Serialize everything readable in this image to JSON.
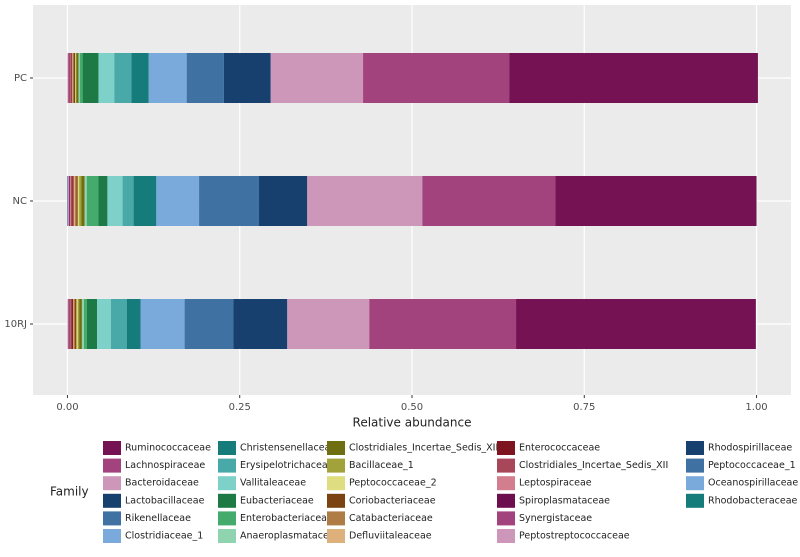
{
  "chart_data": {
    "type": "stacked_barh",
    "categories": [
      "PC",
      "NC",
      "10RJ"
    ],
    "xlabel": "Relative abundance",
    "legend_title": "Family",
    "xlim": [
      -0.05,
      1.05
    ],
    "xticks": [
      {
        "value": 0,
        "label": "0.00"
      },
      {
        "value": 0.25,
        "label": "0.25"
      },
      {
        "value": 0.5,
        "label": "0.50"
      },
      {
        "value": 0.75,
        "label": "0.75"
      },
      {
        "value": 1,
        "label": "1.00"
      }
    ],
    "grid": true,
    "series": [
      {
        "name": "Ruminococcaceae",
        "color": "#741253",
        "values": [
          0.361,
          0.292,
          0.348
        ]
      },
      {
        "name": "Lachnospiraceae",
        "color": "#a3437e",
        "values": [
          0.212,
          0.193,
          0.213
        ]
      },
      {
        "name": "Bacteroidaceae",
        "color": "#cd97b9",
        "values": [
          0.134,
          0.167,
          0.119
        ]
      },
      {
        "name": "Lactobacillaceae",
        "color": "#17406e",
        "values": [
          0.068,
          0.07,
          0.078
        ]
      },
      {
        "name": "Rikenellaceae",
        "color": "#3f71a3",
        "values": [
          0.054,
          0.087,
          0.071
        ]
      },
      {
        "name": "Clostridiaceae_1",
        "color": "#7aa9dc",
        "values": [
          0.055,
          0.062,
          0.064
        ]
      },
      {
        "name": "Christensenellaceae",
        "color": "#157b7b",
        "values": [
          0.025,
          0.033,
          0.02
        ]
      },
      {
        "name": "Erysipelotrichaceae",
        "color": "#49a9a8",
        "values": [
          0.025,
          0.016,
          0.023
        ]
      },
      {
        "name": "Vallitaleaceae",
        "color": "#7dd1c8",
        "values": [
          0.023,
          0.022,
          0.02
        ]
      },
      {
        "name": "Eubacteriaceae",
        "color": "#1d7a45",
        "values": [
          0.023,
          0.013,
          0.015
        ]
      },
      {
        "name": "Enterobacteriaceae",
        "color": "#44ab6d",
        "values": [
          0.004,
          0.017,
          0.004
        ]
      },
      {
        "name": "Anaeroplasmataceae",
        "color": "#8fd4ae",
        "values": [
          0.002,
          0.003,
          0.003
        ]
      },
      {
        "name": "Clostridiales_Incertae_Sedis_XIII",
        "color": "#6f6f12",
        "values": [
          0.003,
          0.005,
          0.004
        ]
      },
      {
        "name": "Bacillaceae_1",
        "color": "#a2a23b",
        "values": [
          0.001,
          0.003,
          0.002
        ]
      },
      {
        "name": "Peptococcaceae_2",
        "color": "#dede80",
        "values": [
          0.001,
          0.002,
          0.002
        ]
      },
      {
        "name": "Coriobacteriaceae",
        "color": "#7b4312",
        "values": [
          0.002,
          0.002,
          0.002
        ]
      },
      {
        "name": "Catabacteriaceae",
        "color": "#b07c46",
        "values": [
          0.001,
          0.002,
          0.002
        ]
      },
      {
        "name": "Defluviitaleaceae",
        "color": "#ddb07c",
        "values": [
          0.001,
          0.002,
          0.001
        ]
      },
      {
        "name": "Enterococcaceae",
        "color": "#7d1420",
        "values": [
          0.001,
          0.002,
          0.002
        ]
      },
      {
        "name": "Clostridiales_Incertae_Sedis_XII",
        "color": "#a8475a",
        "values": [
          0.002,
          0.002,
          0.002
        ]
      },
      {
        "name": "Leptospiraceae",
        "color": "#d27e8e",
        "values": [
          0.001,
          0.001,
          0.001
        ]
      },
      {
        "name": "Spiroplasmataceae",
        "color": "#6d0f4e",
        "values": [
          0.001,
          0.001,
          0.001
        ]
      },
      {
        "name": "Synergistaceae",
        "color": "#a3437e",
        "values": [
          0.001,
          0.001,
          0.001
        ]
      },
      {
        "name": "Peptostreptococcaceae",
        "color": "#cd97b9",
        "values": [
          0.001,
          0.001,
          0.001
        ]
      },
      {
        "name": "Rhodospirillaceae",
        "color": "#17406e",
        "values": [
          0.0,
          0.001,
          0.0
        ]
      },
      {
        "name": "Peptococcaceae_1",
        "color": "#3f71a3",
        "values": [
          0.0,
          0.0,
          0.0
        ]
      },
      {
        "name": "Oceanospirillaceae",
        "color": "#7aa9dc",
        "values": [
          0.0,
          0.0,
          0.0
        ]
      },
      {
        "name": "Rhodobacteraceae",
        "color": "#157b7b",
        "values": [
          0.0,
          0.0,
          0.0
        ]
      }
    ]
  }
}
